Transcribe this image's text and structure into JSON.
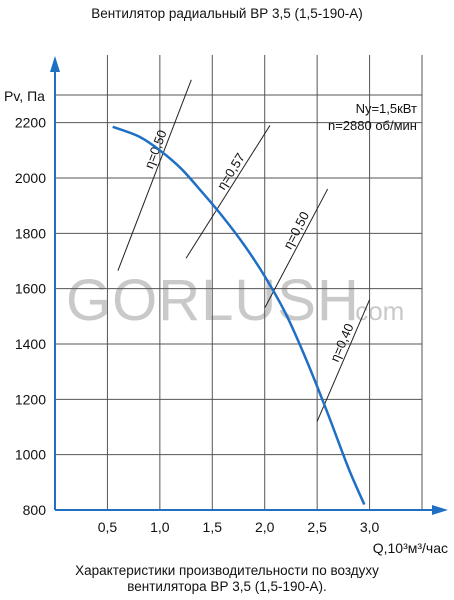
{
  "title": "Вентилятор радиальный ВР 3,5 (1,5-190-А)",
  "caption_line1": "Характеристики производительности по воздуху",
  "caption_line2": "вентилятора  ВР 3,5 (1,5-190-А).",
  "watermark": "GORLUSH.com",
  "info": {
    "power": "Nу=1,5кВт",
    "speed": "n=2880 об/мин"
  },
  "colors": {
    "curve": "#1f6fc5",
    "axis": "#1f6fc5",
    "grid": "#555555",
    "watermark": "#c9c9c9"
  },
  "chart_data": {
    "type": "line",
    "xlabel": "Q,10³м³/час",
    "ylabel": "Pv, Па",
    "xlim": [
      0,
      3.5
    ],
    "ylim": [
      800,
      2300
    ],
    "x_ticks": [
      0.5,
      1.0,
      1.5,
      2.0,
      2.5,
      3.0
    ],
    "x_tick_labels": [
      "0,5",
      "1,0",
      "1,5",
      "2,0",
      "2,5",
      "3,0"
    ],
    "y_ticks": [
      800,
      1000,
      1200,
      1400,
      1600,
      1800,
      2000,
      2200
    ],
    "y_tick_labels": [
      "800",
      "1000",
      "1200",
      "1400",
      "1600",
      "1800",
      "2000",
      "2200"
    ],
    "grid": true,
    "series": [
      {
        "x": [
          0.55,
          0.8,
          1.0,
          1.2,
          1.4,
          1.6,
          1.8,
          2.0,
          2.2,
          2.4,
          2.6,
          2.8,
          2.95
        ],
        "y": [
          2185,
          2150,
          2100,
          2035,
          1950,
          1860,
          1760,
          1645,
          1510,
          1340,
          1150,
          950,
          820
        ]
      }
    ],
    "efficiency_lines": [
      {
        "label": "η=0,50",
        "x": [
          0.6,
          1.3
        ],
        "y": [
          1665,
          2355
        ]
      },
      {
        "label": "η=0,57",
        "x": [
          1.25,
          2.05
        ],
        "y": [
          1710,
          2190
        ]
      },
      {
        "label": "η=0,50",
        "x": [
          2.0,
          2.6
        ],
        "y": [
          1530,
          1960
        ]
      },
      {
        "label": "η=0,40",
        "x": [
          2.5,
          3.0
        ],
        "y": [
          1120,
          1560
        ]
      }
    ]
  }
}
